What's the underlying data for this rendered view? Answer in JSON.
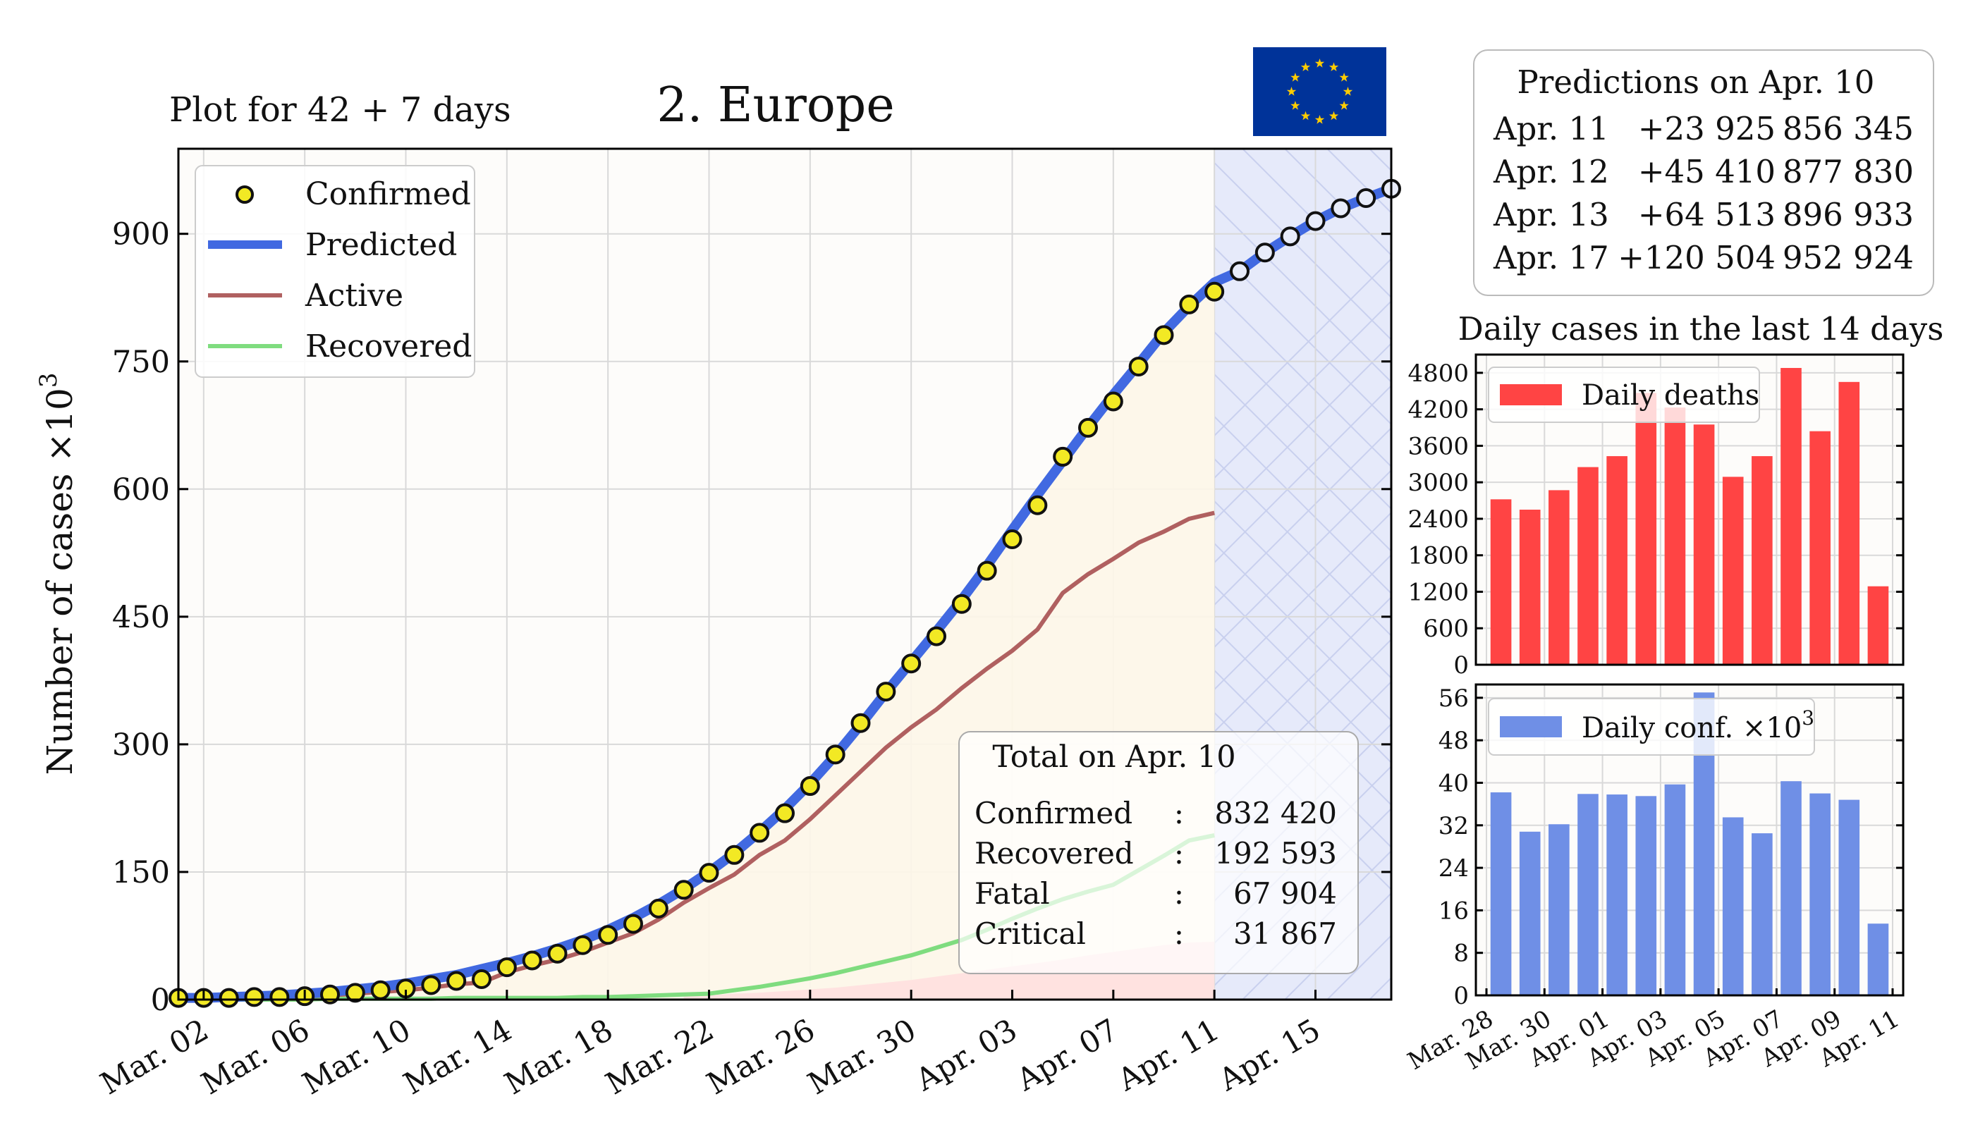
{
  "subtitle": "Plot for 42 + 7 days",
  "title": "2.  Europe",
  "flag_icon": "eu-flag-icon",
  "colors": {
    "confirmed_fill": "#f2e924",
    "predicted": "#4169e1",
    "active": "#b06060",
    "recovered": "#7fdc7f",
    "fatal_area": "#ffd6d6",
    "deaths_bar": "#ff4444",
    "conf_bar": "#6f8fe6",
    "forecast_region": "#e6eafa",
    "eu_blue": "#003399",
    "eu_gold": "#ffcc00"
  },
  "predictions": {
    "title": "Predictions on Apr. 10",
    "rows": [
      {
        "date": "Apr. 11",
        "delta": "+23 925",
        "total": "856 345"
      },
      {
        "date": "Apr. 12",
        "delta": "+45 410",
        "total": "877 830"
      },
      {
        "date": "Apr. 13",
        "delta": "+64 513",
        "total": "896 933"
      },
      {
        "date": "Apr. 17",
        "delta": "+120 504",
        "total": "952 924"
      }
    ]
  },
  "totals": {
    "title": "Total on Apr. 10",
    "rows": [
      {
        "label": "Confirmed",
        "sep": ":",
        "value": "832 420"
      },
      {
        "label": "Recovered",
        "sep": ":",
        "value": "192 593"
      },
      {
        "label": "Fatal",
        "sep": ":",
        "value": "67 904"
      },
      {
        "label": "Critical",
        "sep": ":",
        "value": "31 867"
      }
    ]
  },
  "chart_data": [
    {
      "type": "line",
      "ylabel": "Number of cases ×10³",
      "ylabel_main": "Number of cases ×10",
      "ylabel_exp": "3",
      "xlim": [
        0,
        48
      ],
      "ylim": [
        0,
        1000
      ],
      "grid": true,
      "legend_placement": "top-left",
      "x_tick_positions": [
        1,
        5,
        9,
        13,
        17,
        21,
        25,
        29,
        33,
        37,
        41,
        45
      ],
      "x_tick_labels": [
        "Mar. 02",
        "Mar. 06",
        "Mar. 10",
        "Mar. 14",
        "Mar. 18",
        "Mar. 22",
        "Mar. 26",
        "Mar. 30",
        "Apr. 03",
        "Apr. 07",
        "Apr. 11",
        "Apr. 15"
      ],
      "y_ticks": [
        0,
        150,
        300,
        450,
        600,
        750,
        900
      ],
      "forecast_start": 41,
      "series": [
        {
          "name": "Confirmed",
          "kind": "markers",
          "x_start": 0,
          "values": [
            2,
            2,
            2,
            3,
            3,
            4,
            6,
            8,
            11,
            13,
            17,
            22,
            24,
            38,
            46,
            54,
            64,
            76,
            89,
            107,
            129,
            149,
            170,
            196,
            219,
            251,
            288,
            325,
            362,
            395,
            427,
            465,
            504,
            541,
            581,
            638,
            672,
            703,
            744,
            781,
            817,
            832
          ]
        },
        {
          "name": "Predicted",
          "kind": "line",
          "x_start": 0,
          "values": [
            2,
            2,
            3,
            4,
            5,
            7,
            9,
            12,
            15,
            19,
            24,
            29,
            36,
            43,
            51,
            60,
            70,
            82,
            96,
            112,
            130,
            150,
            172,
            197,
            224,
            254,
            287,
            323,
            361,
            397,
            433,
            470,
            510,
            552,
            593,
            633,
            673,
            711,
            747,
            784,
            815,
            843,
            856,
            878,
            897,
            915,
            930,
            942,
            953
          ]
        },
        {
          "name": "Active",
          "kind": "line",
          "x_start": 0,
          "values": [
            2,
            2,
            2,
            3,
            3,
            4,
            5,
            7,
            9,
            11,
            14,
            18,
            20,
            32,
            40,
            47,
            56,
            67,
            78,
            94,
            114,
            131,
            147,
            170,
            187,
            212,
            240,
            268,
            296,
            320,
            341,
            366,
            389,
            410,
            435,
            478,
            500,
            518,
            537,
            550,
            565,
            572
          ]
        },
        {
          "name": "Recovered",
          "kind": "line",
          "x_start": 0,
          "values": [
            0,
            0,
            0,
            0,
            0,
            0,
            1,
            1,
            1,
            1,
            1,
            2,
            2,
            2,
            2,
            2,
            3,
            3,
            4,
            5,
            6,
            7,
            11,
            15,
            20,
            25,
            31,
            38,
            45,
            52,
            61,
            70,
            82,
            95,
            107,
            118,
            127,
            135,
            152,
            169,
            187,
            193
          ]
        },
        {
          "name": "Fatal",
          "kind": "area",
          "x_start": 20,
          "values": [
            4,
            5,
            7,
            8,
            10,
            12,
            14,
            17,
            20,
            23,
            27,
            31,
            35,
            39,
            43,
            47,
            52,
            56,
            60,
            64,
            67,
            68
          ]
        }
      ]
    },
    {
      "type": "bar",
      "title": "Daily cases in the last 14 days",
      "series": [
        {
          "name": "Daily deaths",
          "values": [
            2720,
            2550,
            2870,
            3250,
            3430,
            4470,
            4230,
            3950,
            3090,
            3430,
            4880,
            3840,
            4650,
            1290
          ]
        }
      ],
      "ylim": [
        0,
        5100
      ],
      "y_ticks": [
        0,
        600,
        1200,
        1800,
        2400,
        3000,
        3600,
        4200,
        4800
      ],
      "legend_placement": "top-left"
    },
    {
      "type": "bar",
      "series": [
        {
          "name": "Daily conf. ×10³",
          "values": [
            38.2,
            30.8,
            32.2,
            37.9,
            37.8,
            37.5,
            39.7,
            57.0,
            33.5,
            30.5,
            40.3,
            38.0,
            36.8,
            13.5
          ]
        }
      ],
      "legend_main": "Daily conf. ×10",
      "legend_exp": "3",
      "ylim": [
        0,
        58.5
      ],
      "y_ticks": [
        0,
        8,
        16,
        24,
        32,
        40,
        48,
        56
      ],
      "legend_placement": "top-left",
      "x_tick_labels": [
        "Mar. 28",
        "Mar. 30",
        "Apr. 01",
        "Apr. 03",
        "Apr. 05",
        "Apr. 07",
        "Apr. 09",
        "Apr. 11"
      ],
      "x_tick_positions": [
        0,
        2,
        4,
        6,
        8,
        10,
        12,
        14
      ]
    }
  ]
}
